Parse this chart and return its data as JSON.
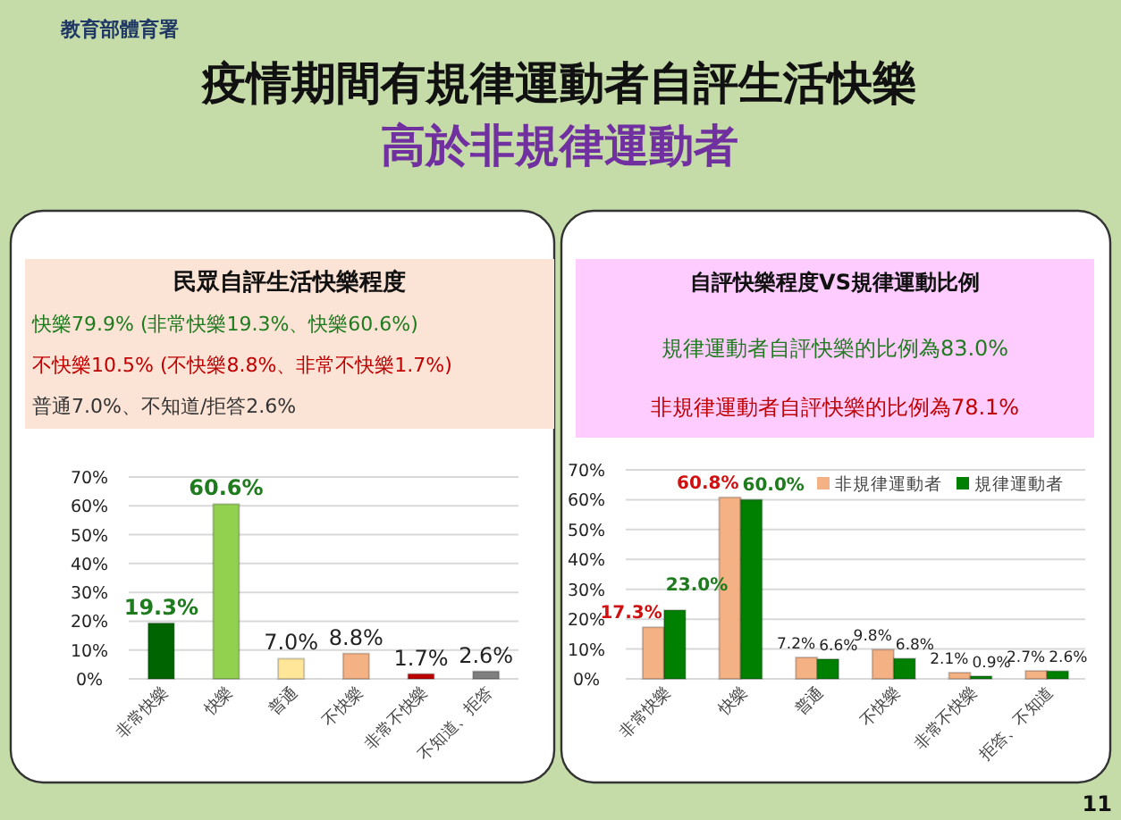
{
  "chart_data": [
    {
      "type": "bar",
      "title": "疫情期間有規律運動者自評生活快樂",
      "subtitle": "高於非規律運動者",
      "categories": [
        "非常快樂",
        "快樂",
        "普通",
        "不快樂",
        "非常不快樂",
        "不知道、拒答"
      ],
      "values": [
        19.3,
        60.6,
        7.0,
        8.8,
        1.7,
        2.6
      ],
      "colors": [
        "#006400",
        "#92d050",
        "#ffe699",
        "#f4b183",
        "#c00000",
        "#7f7f7f"
      ],
      "ylim": [
        0,
        70
      ],
      "yticks": [
        {
          "value": 0,
          "label": "0%"
        },
        {
          "value": 10,
          "label": "10%"
        },
        {
          "value": 20,
          "label": "20%"
        },
        {
          "value": 30,
          "label": "30%"
        },
        {
          "value": 40,
          "label": "40%"
        },
        {
          "value": 50,
          "label": "50%"
        },
        {
          "value": 60,
          "label": "60%"
        },
        {
          "value": 70,
          "label": "70%"
        }
      ],
      "grid": "y",
      "data_labels": true,
      "value_labels": [
        "19.3%",
        "60.6%",
        "7.0%",
        "8.8%",
        "1.7%",
        "2.6%"
      ],
      "annotations": [
        "教育部體育署",
        "民眾自評生活快樂程度",
        "快樂79.9% (非常快樂19.3%、快樂60.6%)",
        "不快樂10.5% (不快樂8.8%、非常不快樂1.7%)",
        "普通7.0%、不知道/拒答2.6%",
        "11"
      ]
    },
    {
      "type": "bar",
      "categories": [
        "非常快樂",
        "快樂",
        "普通",
        "不快樂",
        "非常不快樂",
        "拒答、不知道"
      ],
      "series": [
        {
          "name": "非規律運動者",
          "color": "#f4b183",
          "values": [
            17.3,
            60.8,
            7.2,
            9.8,
            2.1,
            2.7
          ],
          "value_labels": [
            "17.3%",
            "60.8%",
            "7.2%",
            "9.8%",
            "2.1%",
            "2.7%"
          ]
        },
        {
          "name": "規律運動者",
          "color": "#008000",
          "values": [
            23.0,
            60.0,
            6.6,
            6.8,
            0.9,
            2.6
          ],
          "value_labels": [
            "23.0%",
            "60.0%",
            "6.6%",
            "6.8%",
            "0.9%",
            "2.6%"
          ]
        }
      ],
      "ylim": [
        0,
        70
      ],
      "yticks": [
        {
          "value": 0,
          "label": "0%"
        },
        {
          "value": 10,
          "label": "10%"
        },
        {
          "value": 20,
          "label": "20%"
        },
        {
          "value": 30,
          "label": "30%"
        },
        {
          "value": 40,
          "label": "40%"
        },
        {
          "value": 50,
          "label": "50%"
        },
        {
          "value": 60,
          "label": "60%"
        },
        {
          "value": 70,
          "label": "70%"
        }
      ],
      "grid": "y",
      "data_labels": true,
      "legend": "top right",
      "annotations": [
        "自評快樂程度VS規律運動比例",
        "規律運動者自評快樂的比例為83.0%",
        "非規律運動者自評快樂的比例為78.1%"
      ]
    }
  ]
}
